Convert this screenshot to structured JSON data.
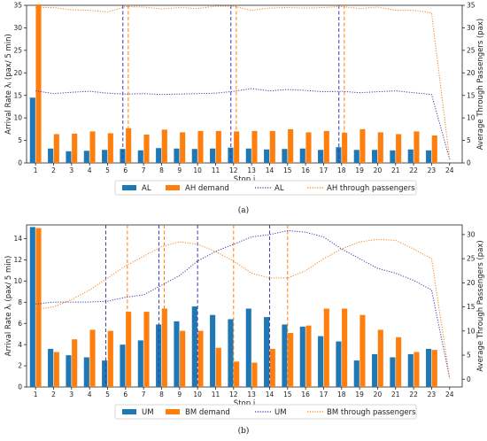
{
  "chart_data": [
    {
      "type": "bar",
      "caption": "(a)",
      "xlabel": "Stop j",
      "ylabel": "Arrival Rate λⱼ (pax/ 5 min)",
      "ylabel_right": "Average Through Passengers (pax)",
      "ylim": [
        0,
        35
      ],
      "yticks": [
        0,
        5,
        10,
        15,
        20,
        25,
        30,
        35
      ],
      "ylim_right": [
        0,
        35
      ],
      "yticks_right": [
        0,
        5,
        10,
        15,
        20,
        25,
        30,
        35
      ],
      "categories": [
        "1",
        "2",
        "3",
        "4",
        "5",
        "6",
        "7",
        "8",
        "9",
        "10",
        "11",
        "12",
        "13",
        "14",
        "15",
        "16",
        "17",
        "18",
        "19",
        "20",
        "21",
        "22",
        "23",
        "24"
      ],
      "bar_series": [
        {
          "name": "AL",
          "color": "#1f77b4",
          "values": [
            14.5,
            3.2,
            2.6,
            2.7,
            2.9,
            3.1,
            2.8,
            3.3,
            3.2,
            3.1,
            3.2,
            3.4,
            3.2,
            3.0,
            3.1,
            3.2,
            2.9,
            3.5,
            2.9,
            2.9,
            2.8,
            3.0,
            2.8,
            0
          ]
        },
        {
          "name": "AH demand",
          "color": "#ff7f0e",
          "values": [
            35.2,
            6.4,
            6.5,
            7.0,
            6.6,
            7.7,
            6.3,
            7.4,
            6.8,
            7.1,
            7.1,
            7.0,
            7.1,
            7.1,
            7.5,
            6.8,
            7.1,
            6.7,
            7.5,
            6.8,
            6.4,
            7.0,
            6.1,
            0
          ]
        }
      ],
      "line_series": [
        {
          "name": "AL",
          "color": "#3b3ba8",
          "style": "dotted",
          "values": [
            16.0,
            15.4,
            15.7,
            15.9,
            15.5,
            15.3,
            15.4,
            15.2,
            15.3,
            15.4,
            15.5,
            15.9,
            16.5,
            16.0,
            16.3,
            16.1,
            15.8,
            15.9,
            15.6,
            15.8,
            16.0,
            15.6,
            15.2,
            0.8
          ]
        },
        {
          "name": "AH through passengers",
          "color": "#ff7f0e",
          "style": "dotted",
          "values": [
            34.5,
            34.5,
            34.0,
            33.9,
            33.5,
            34.7,
            34.6,
            34.2,
            34.5,
            34.3,
            34.8,
            34.8,
            33.9,
            34.4,
            34.5,
            34.4,
            34.5,
            34.7,
            34.3,
            34.6,
            33.9,
            33.9,
            33.3,
            0.8
          ]
        }
      ],
      "vlines": [
        {
          "stop": 5.85,
          "color": "#3b3ba8"
        },
        {
          "stop": 6.15,
          "color": "#ff7f0e"
        },
        {
          "stop": 11.85,
          "color": "#3b3ba8"
        },
        {
          "stop": 12.15,
          "color": "#ff7f0e"
        },
        {
          "stop": 17.85,
          "color": "#3b3ba8"
        },
        {
          "stop": 18.15,
          "color": "#ff7f0e"
        }
      ],
      "legend": [
        "AL",
        "AH demand",
        "AL",
        "AH through passengers"
      ],
      "legend_position": "bottom"
    },
    {
      "type": "bar",
      "caption": "(b)",
      "xlabel": "Stop j",
      "ylabel": "Arrival Rate λⱼ (pax/ 5 min)",
      "ylabel_right": "Average Through Passengers (pax)",
      "ylim": [
        0,
        15.3
      ],
      "yticks": [
        0,
        2,
        4,
        6,
        8,
        10,
        12,
        14
      ],
      "ylim_right": [
        -1.6,
        32
      ],
      "yticks_right": [
        0,
        5,
        10,
        15,
        20,
        25,
        30
      ],
      "categories": [
        "1",
        "2",
        "3",
        "4",
        "5",
        "6",
        "7",
        "8",
        "9",
        "10",
        "11",
        "12",
        "13",
        "14",
        "15",
        "16",
        "17",
        "18",
        "19",
        "20",
        "21",
        "22",
        "23",
        "24"
      ],
      "bar_series": [
        {
          "name": "UM",
          "color": "#1f77b4",
          "values": [
            15.1,
            3.6,
            3.0,
            2.8,
            2.5,
            4.0,
            4.4,
            5.9,
            6.2,
            7.6,
            6.8,
            6.4,
            7.4,
            6.6,
            5.9,
            5.7,
            4.8,
            4.3,
            2.5,
            3.1,
            2.8,
            3.1,
            3.6,
            0
          ]
        },
        {
          "name": "BM demand",
          "color": "#ff7f0e",
          "values": [
            15.0,
            3.3,
            4.5,
            5.4,
            5.3,
            7.1,
            7.1,
            7.4,
            5.3,
            5.3,
            3.7,
            2.4,
            2.3,
            3.6,
            5.1,
            5.8,
            7.4,
            7.4,
            6.8,
            5.4,
            4.7,
            3.3,
            3.5,
            0
          ]
        }
      ],
      "line_series": [
        {
          "name": "UM",
          "color": "#3b3ba8",
          "style": "dotted",
          "values": [
            15.6,
            16.0,
            16.0,
            16.0,
            16.2,
            17.0,
            17.5,
            19.5,
            21.5,
            24.5,
            26.5,
            28.0,
            29.5,
            30.0,
            30.8,
            30.5,
            29.5,
            27.0,
            25.0,
            23.0,
            22.0,
            20.5,
            18.5,
            0.2
          ]
        },
        {
          "name": "BM through passengers",
          "color": "#ff7f0e",
          "style": "dotted",
          "values": [
            14.5,
            15.0,
            16.5,
            18.5,
            21.0,
            23.5,
            25.5,
            27.5,
            28.5,
            28.0,
            26.5,
            24.5,
            22.0,
            21.0,
            21.0,
            22.5,
            25.0,
            27.0,
            28.5,
            29.0,
            28.8,
            27.0,
            25.0,
            0.2
          ]
        }
      ],
      "vlines": [
        {
          "stop": 4.9,
          "color": "#3b3ba8"
        },
        {
          "stop": 6.1,
          "color": "#ff7f0e"
        },
        {
          "stop": 7.85,
          "color": "#3b3ba8"
        },
        {
          "stop": 8.15,
          "color": "#ff7f0e"
        },
        {
          "stop": 10.0,
          "color": "#3b3ba8"
        },
        {
          "stop": 12.0,
          "color": "#ff7f0e"
        },
        {
          "stop": 14.0,
          "color": "#3b3ba8"
        },
        {
          "stop": 15.0,
          "color": "#ff7f0e"
        }
      ],
      "legend": [
        "UM",
        "BM demand",
        "UM",
        "BM through passengers"
      ],
      "legend_position": "bottom"
    }
  ]
}
